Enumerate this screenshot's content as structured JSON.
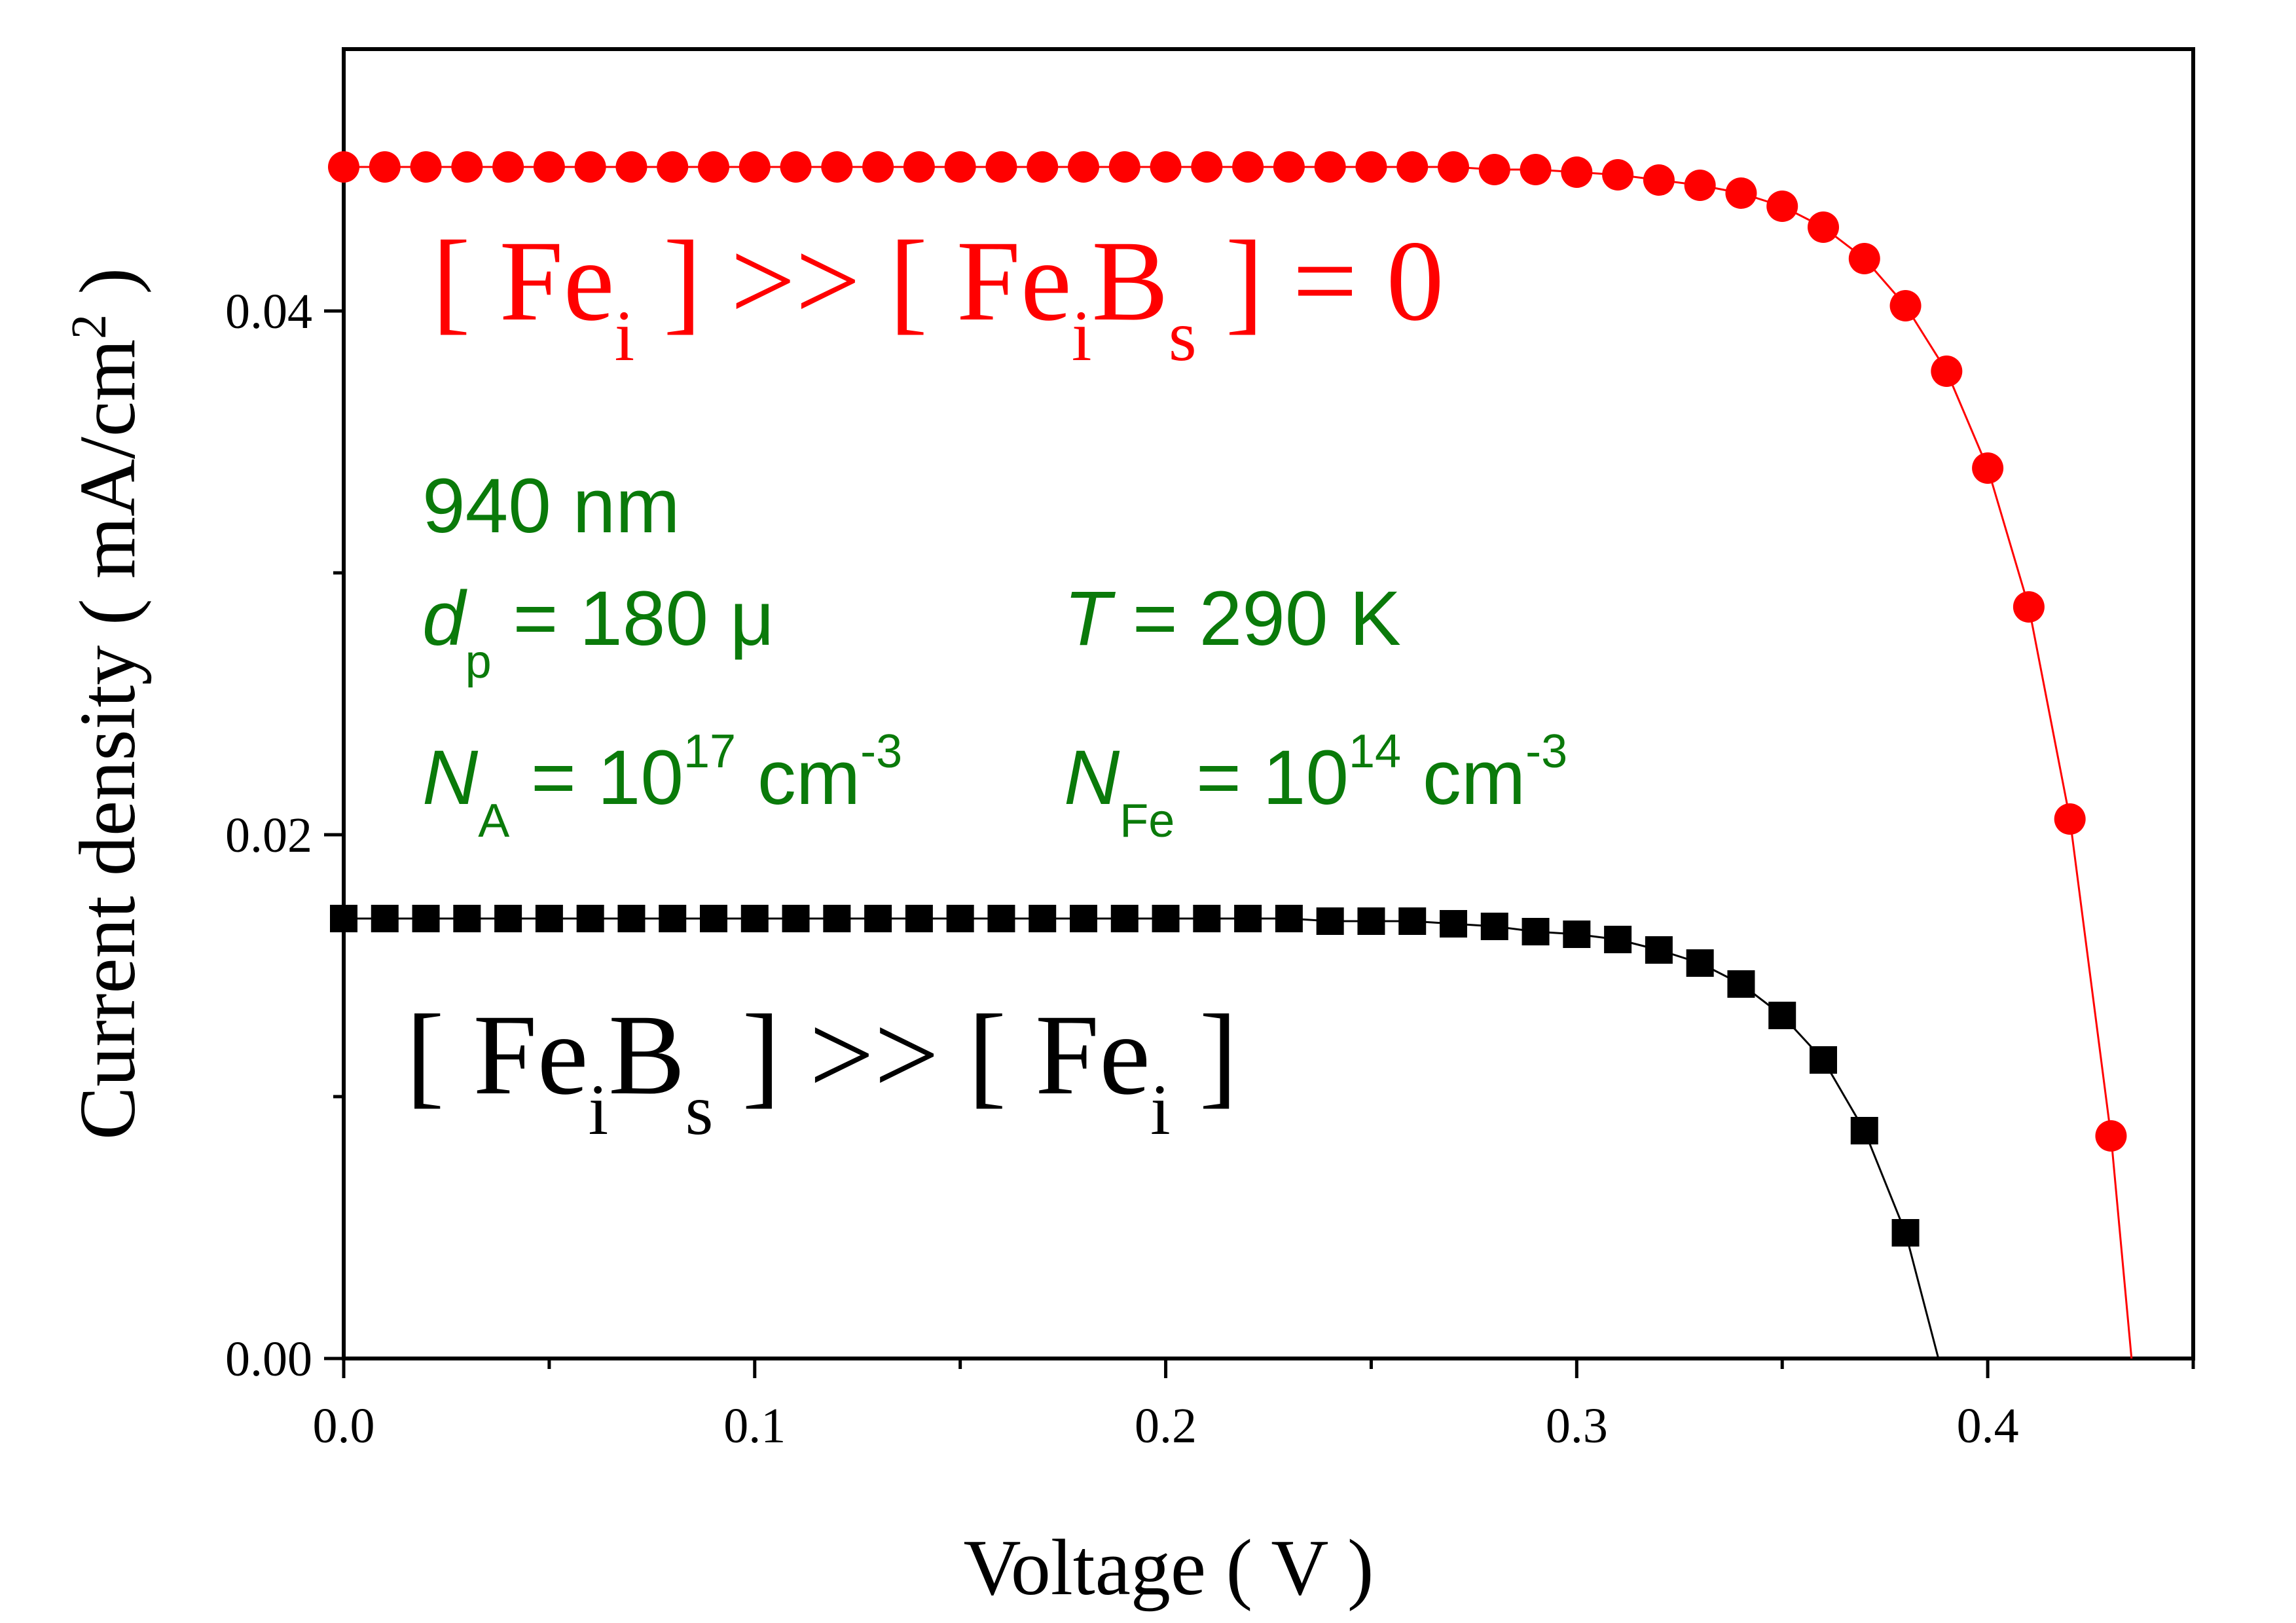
{
  "chart_data": {
    "type": "line",
    "xlabel": "Voltage ( V )",
    "ylabel": {
      "text": "Current density ( mA/cm",
      "sup": "2",
      "close": " )"
    },
    "xlim": [
      0.0,
      0.45
    ],
    "ylim": [
      0.0,
      0.05
    ],
    "x_ticks": [
      0.0,
      0.1,
      0.2,
      0.3,
      0.4
    ],
    "x_tick_labels": [
      "0.0",
      "0.1",
      "0.2",
      "0.3",
      "0.4"
    ],
    "x_minor_ticks": [
      0.05,
      0.15,
      0.25,
      0.35,
      0.45
    ],
    "y_ticks": [
      0.0,
      0.02,
      0.04
    ],
    "y_tick_labels": [
      "0.00",
      "0.02",
      "0.04"
    ],
    "y_minor_ticks": [
      0.01,
      0.03
    ],
    "grid": false,
    "series": [
      {
        "marker": "circle",
        "color": "#ff0000",
        "points": [
          [
            0.0,
            0.0455
          ],
          [
            0.01,
            0.0455
          ],
          [
            0.02,
            0.0455
          ],
          [
            0.03,
            0.0455
          ],
          [
            0.04,
            0.0455
          ],
          [
            0.05,
            0.0455
          ],
          [
            0.06,
            0.0455
          ],
          [
            0.07,
            0.0455
          ],
          [
            0.08,
            0.0455
          ],
          [
            0.09,
            0.0455
          ],
          [
            0.1,
            0.0455
          ],
          [
            0.11,
            0.0455
          ],
          [
            0.12,
            0.0455
          ],
          [
            0.13,
            0.0455
          ],
          [
            0.14,
            0.0455
          ],
          [
            0.15,
            0.0455
          ],
          [
            0.16,
            0.0455
          ],
          [
            0.17,
            0.0455
          ],
          [
            0.18,
            0.0455
          ],
          [
            0.19,
            0.0455
          ],
          [
            0.2,
            0.0455
          ],
          [
            0.21,
            0.0455
          ],
          [
            0.22,
            0.0455
          ],
          [
            0.23,
            0.0455
          ],
          [
            0.24,
            0.0455
          ],
          [
            0.25,
            0.0455
          ],
          [
            0.26,
            0.0455
          ],
          [
            0.27,
            0.0455
          ],
          [
            0.28,
            0.0454
          ],
          [
            0.29,
            0.0454
          ],
          [
            0.3,
            0.0453
          ],
          [
            0.31,
            0.0452
          ],
          [
            0.32,
            0.045
          ],
          [
            0.33,
            0.0448
          ],
          [
            0.34,
            0.0445
          ],
          [
            0.35,
            0.044
          ],
          [
            0.36,
            0.0432
          ],
          [
            0.37,
            0.042
          ],
          [
            0.38,
            0.0402
          ],
          [
            0.39,
            0.0377
          ],
          [
            0.4,
            0.034
          ],
          [
            0.41,
            0.0287
          ],
          [
            0.42,
            0.0206
          ],
          [
            0.43,
            0.0085
          ]
        ],
        "line_end": [
          0.435,
          0.0
        ]
      },
      {
        "marker": "square",
        "color": "#000000",
        "points": [
          [
            0.0,
            0.0168
          ],
          [
            0.01,
            0.0168
          ],
          [
            0.02,
            0.0168
          ],
          [
            0.03,
            0.0168
          ],
          [
            0.04,
            0.0168
          ],
          [
            0.05,
            0.0168
          ],
          [
            0.06,
            0.0168
          ],
          [
            0.07,
            0.0168
          ],
          [
            0.08,
            0.0168
          ],
          [
            0.09,
            0.0168
          ],
          [
            0.1,
            0.0168
          ],
          [
            0.11,
            0.0168
          ],
          [
            0.12,
            0.0168
          ],
          [
            0.13,
            0.0168
          ],
          [
            0.14,
            0.0168
          ],
          [
            0.15,
            0.0168
          ],
          [
            0.16,
            0.0168
          ],
          [
            0.17,
            0.0168
          ],
          [
            0.18,
            0.0168
          ],
          [
            0.19,
            0.0168
          ],
          [
            0.2,
            0.0168
          ],
          [
            0.21,
            0.0168
          ],
          [
            0.22,
            0.0168
          ],
          [
            0.23,
            0.0168
          ],
          [
            0.24,
            0.0167
          ],
          [
            0.25,
            0.0167
          ],
          [
            0.26,
            0.0167
          ],
          [
            0.27,
            0.0166
          ],
          [
            0.28,
            0.0165
          ],
          [
            0.29,
            0.0163
          ],
          [
            0.3,
            0.0162
          ],
          [
            0.31,
            0.016
          ],
          [
            0.32,
            0.0156
          ],
          [
            0.33,
            0.0151
          ],
          [
            0.34,
            0.0143
          ],
          [
            0.35,
            0.0131
          ],
          [
            0.36,
            0.0114
          ],
          [
            0.37,
            0.0087
          ],
          [
            0.38,
            0.0048
          ]
        ],
        "line_end": [
          0.388,
          0.0
        ]
      }
    ],
    "annotations": {
      "red_label": {
        "p1": "[ Fe",
        "p1_sub": "i",
        "p2": " ] >> [ Fe",
        "p2_sub": "i",
        "p3": "B",
        "p3_sub": "s",
        "p4": " ] = 0"
      },
      "black_label": {
        "p1": "[ Fe",
        "p1_sub": "i",
        "p2": "B",
        "p2_sub": "s",
        "p3": " ] >> [ Fe",
        "p3_sub": "i",
        "p4": " ]"
      },
      "wavelength": "940 nm",
      "thickness": {
        "var": "d",
        "sub": "p",
        "rest": " = 180 μ"
      },
      "temperature": {
        "var": "T",
        "rest": " = 290 K"
      },
      "doping": {
        "var": "N",
        "sub": "A",
        "mid": " = 10",
        "sup": "17",
        "unit": " cm",
        "unit_sup": "-3"
      },
      "iron": {
        "var": "N",
        "sub": "Fe",
        "mid": " = 10",
        "sup": "14",
        "unit": " cm",
        "unit_sup": "-3"
      }
    }
  }
}
